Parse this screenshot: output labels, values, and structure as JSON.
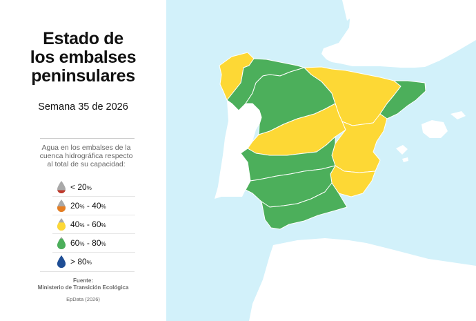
{
  "header": {
    "title_lines": [
      "Estado de",
      "los embalses",
      "peninsulares"
    ],
    "week": "Semana 35 de 2026"
  },
  "legend": {
    "description": "Agua en los embalses de la cuenca hidrográfica respecto al total de su capacidad:",
    "items": [
      {
        "prefix": "< ",
        "lo": "20",
        "hi": "",
        "drop_top": "#a9a9a9",
        "drop_fill": "#c0392b",
        "fill_level": 0.25
      },
      {
        "prefix": "",
        "lo": "20",
        "hi": "40",
        "drop_top": "#a9a9a9",
        "drop_fill": "#e67e22",
        "fill_level": 0.45
      },
      {
        "prefix": "",
        "lo": "40",
        "hi": "60",
        "drop_top": "#a9a9a9",
        "drop_fill": "#fdd835",
        "fill_level": 0.65
      },
      {
        "prefix": "",
        "lo": "60",
        "hi": "80",
        "drop_top": "#a9a9a9",
        "drop_fill": "#4caf5b",
        "fill_level": 0.85
      },
      {
        "prefix": "> ",
        "lo": "80",
        "hi": "",
        "drop_top": "#1f4e95",
        "drop_fill": "#1f4e95",
        "fill_level": 1.0
      }
    ]
  },
  "source": {
    "label": "Fuente:",
    "name": "Ministerio de Transición Ecológica",
    "credit": "EpData (2026)"
  },
  "map": {
    "sea_color": "#d2f1fa",
    "land_color": "#ffffff",
    "colors": {
      "green": "#4caf5b",
      "yellow": "#fdd835"
    },
    "basins": [
      {
        "name": "galicia-costa",
        "status": "yellow"
      },
      {
        "name": "cantabrico-mino-sil",
        "status": "green"
      },
      {
        "name": "duero",
        "status": "green"
      },
      {
        "name": "ebro",
        "status": "yellow"
      },
      {
        "name": "cataluna",
        "status": "green"
      },
      {
        "name": "tajo",
        "status": "yellow"
      },
      {
        "name": "jucar",
        "status": "yellow"
      },
      {
        "name": "guadiana",
        "status": "green"
      },
      {
        "name": "segura",
        "status": "yellow"
      },
      {
        "name": "guadalquivir",
        "status": "green"
      },
      {
        "name": "andalucia",
        "status": "green"
      }
    ]
  }
}
